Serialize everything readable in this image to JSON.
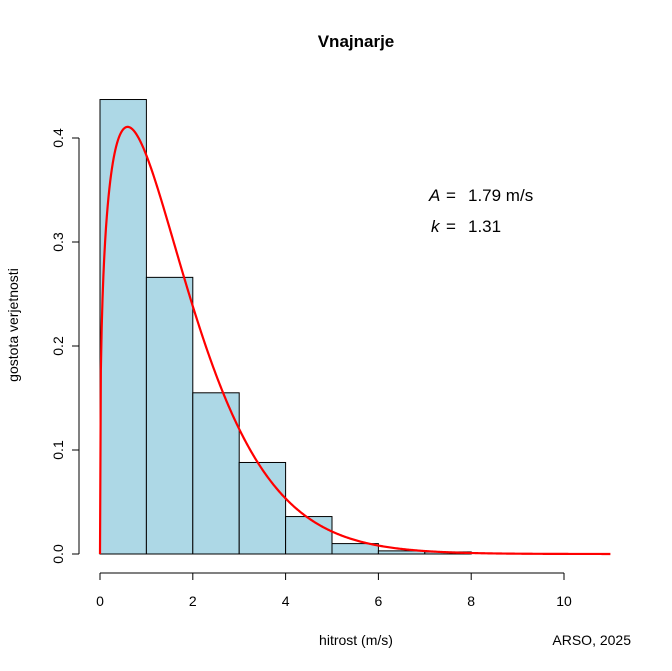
{
  "chart_data": {
    "type": "bar",
    "title": "Vnajnarje",
    "xlabel": "hitrost (m/s)",
    "ylabel": "gostota verjetnosti",
    "xlim": [
      0,
      11
    ],
    "ylim": [
      0,
      0.44
    ],
    "x_ticks": [
      "0",
      "2",
      "4",
      "6",
      "8",
      "10"
    ],
    "y_ticks": [
      "0.0",
      "0.1",
      "0.2",
      "0.3",
      "0.4"
    ],
    "bin_width": 1,
    "bins": [
      {
        "from": 0,
        "to": 1,
        "density": 0.437
      },
      {
        "from": 1,
        "to": 2,
        "density": 0.266
      },
      {
        "from": 2,
        "to": 3,
        "density": 0.155
      },
      {
        "from": 3,
        "to": 4,
        "density": 0.088
      },
      {
        "from": 4,
        "to": 5,
        "density": 0.036
      },
      {
        "from": 5,
        "to": 6,
        "density": 0.01
      },
      {
        "from": 6,
        "to": 7,
        "density": 0.003
      },
      {
        "from": 7,
        "to": 8,
        "density": 0.002
      }
    ],
    "bar_color": "#add8e6",
    "bar_edge_color": "#000000",
    "fit_curve": {
      "distribution": "weibull",
      "A": 1.79,
      "k": 1.31,
      "x_max": 11,
      "color": "#ff0000"
    },
    "annotations": {
      "A_label": "A",
      "A_equals": "=",
      "A_value": "1.79 m/s",
      "k_label": "k",
      "k_equals": "=",
      "k_value": "1.31"
    },
    "credit": "ARSO, 2025"
  }
}
